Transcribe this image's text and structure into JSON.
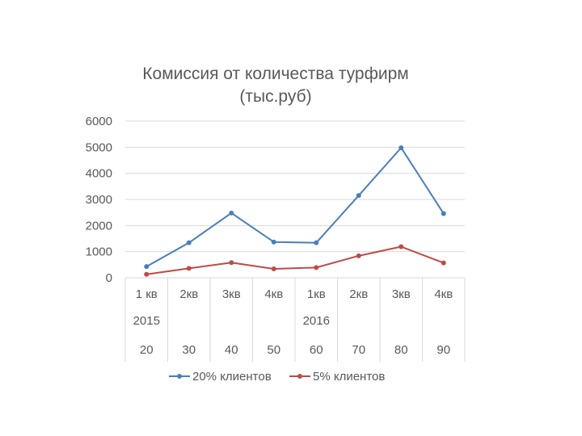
{
  "chart_data": {
    "type": "line",
    "title": [
      "Комиссия от количества турфирм",
      "(тыс.руб)"
    ],
    "ylim": [
      0,
      6000
    ],
    "yticks": [
      "0",
      "1000",
      "2000",
      "3000",
      "4000",
      "5000",
      "6000"
    ],
    "categories": [
      "1 кв",
      "2кв",
      "3кв",
      "4кв",
      "1кв",
      "2кв",
      "3кв",
      "4кв"
    ],
    "years": [
      {
        "label": "2015",
        "span": [
          0,
          0
        ]
      },
      {
        "label": "2016",
        "span": [
          1,
          7
        ]
      }
    ],
    "agencies": [
      "20",
      "30",
      "40",
      "50",
      "60",
      "70",
      "80",
      "90"
    ],
    "series": [
      {
        "name": "20% клиентов",
        "color": "#4a7ebb",
        "values": [
          430,
          1340,
          2480,
          1370,
          1340,
          3150,
          4980,
          2460
        ]
      },
      {
        "name": "5% клиентов",
        "color": "#be4b48",
        "values": [
          130,
          360,
          580,
          340,
          390,
          840,
          1190,
          570
        ]
      }
    ],
    "grid": true,
    "legend": "bottom"
  }
}
